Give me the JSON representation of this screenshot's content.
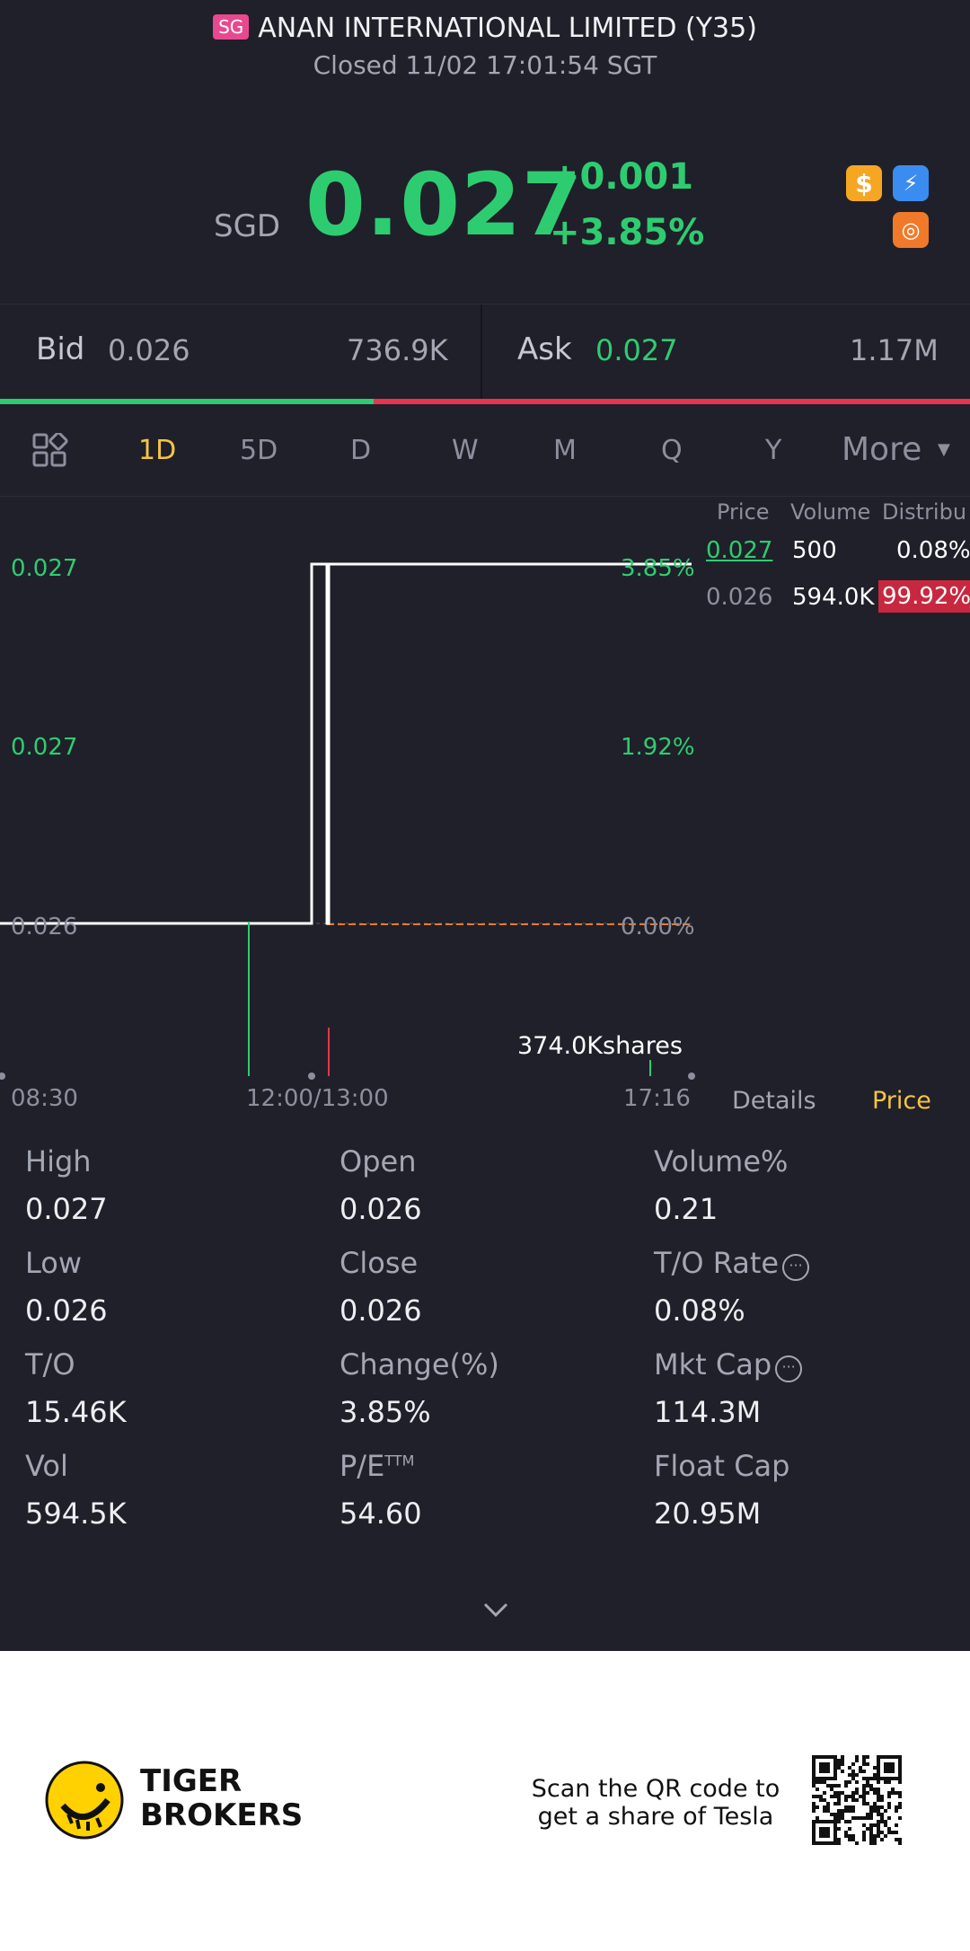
{
  "header": {
    "market_badge": "SG",
    "title": "ANAN INTERNATIONAL LIMITED (Y35)",
    "status": "Closed 11/02 17:01:54 SGT",
    "currency": "SGD",
    "price": "0.027",
    "change": "+0.001",
    "change_pct": "+3.85%",
    "icons": [
      "dollar-icon",
      "lightning-level-icon",
      "margin-icon"
    ]
  },
  "quote": {
    "bid_label": "Bid",
    "bid_price": "0.026",
    "bid_size": "736.9K",
    "ask_label": "Ask",
    "ask_price": "0.027",
    "ask_size": "1.17M",
    "bid_ratio": 0.385
  },
  "tabs": {
    "items": [
      "1D",
      "5D",
      "D",
      "W",
      "M",
      "Q",
      "Y"
    ],
    "active": "1D",
    "more_label": "More"
  },
  "chart": {
    "y_left": [
      "0.027",
      "0.027",
      "0.026"
    ],
    "y_right": [
      "3.85%",
      "1.92%",
      "0.00%"
    ],
    "x_labels": [
      "08:30",
      "12:00/13:00",
      "17:16"
    ],
    "volume_label": "374.0Kshares"
  },
  "chart_data": {
    "type": "line",
    "x": [
      "08:30",
      "12:00",
      "12:05",
      "12:10",
      "13:00",
      "13:05",
      "17:16"
    ],
    "y": [
      0.026,
      0.026,
      0.027,
      0.027,
      0.026,
      0.027,
      0.027
    ],
    "prev_close": 0.026,
    "ylim": [
      0.026,
      0.027
    ]
  },
  "distribution": {
    "headers": [
      "Price",
      "Volume",
      "Distribu"
    ],
    "rows": [
      {
        "price": "0.027",
        "volume": "500",
        "pct": "0.08%"
      },
      {
        "price": "0.026",
        "volume": "594.0K",
        "pct": "99.92%"
      }
    ]
  },
  "side_tabs": {
    "details": "Details",
    "price": "Price"
  },
  "stats": {
    "high_label": "High",
    "high": "0.027",
    "open_label": "Open",
    "open": "0.026",
    "volpct_label": "Volume%",
    "volpct": "0.21",
    "low_label": "Low",
    "low": "0.026",
    "close_label": "Close",
    "close": "0.026",
    "torate_label": "T/O Rate",
    "torate": "0.08%",
    "to_label": "T/O",
    "to": "15.46K",
    "chgpct_label": "Change(%)",
    "chgpct": "3.85%",
    "mktcap_label": "Mkt Cap",
    "mktcap": "114.3M",
    "vol_label": "Vol",
    "vol": "594.5K",
    "pe_label": "P/E",
    "pe_sup": "TTM",
    "pe": "54.60",
    "floatcap_label": "Float Cap",
    "floatcap": "20.95M"
  },
  "footer": {
    "brand_line1": "TIGER",
    "brand_line2": "BROKERS",
    "promo_line1": "Scan the QR code to",
    "promo_line2": "get a share of Tesla"
  },
  "colors": {
    "up": "#2ecc71",
    "down": "#e8344e",
    "accent": "#f5c542",
    "background": "#1f2029"
  }
}
